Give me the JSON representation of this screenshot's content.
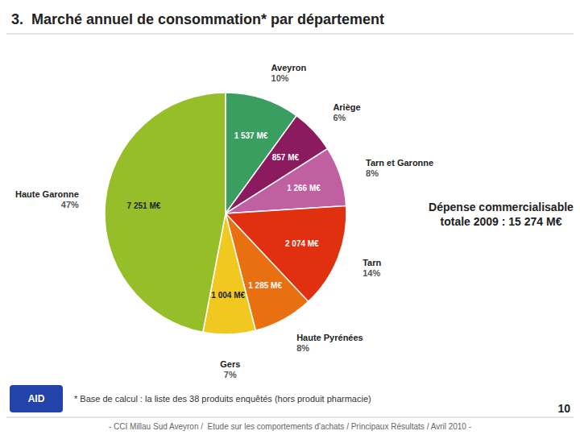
{
  "chart_data": {
    "type": "pie",
    "title": "3.  Marché annuel de consommation* par département",
    "categories": [
      "Aveyron",
      "Ariège",
      "Tarn et Garonne",
      "Tarn",
      "Haute Pyrénées",
      "Gers",
      "Haute Garonne"
    ],
    "values": [
      10,
      6,
      8,
      14,
      8,
      7,
      47
    ],
    "value_labels": [
      "10%",
      "6%",
      "8%",
      "14%",
      "8%",
      "7%",
      "47%"
    ],
    "amount_labels": [
      "1 537 M€",
      "857 M€",
      "1 266 M€",
      "2 074 M€",
      "1 285 M€",
      "1 004 M€",
      "7 251 M€"
    ],
    "colors": [
      "#3a9e60",
      "#8b1a5e",
      "#c060a0",
      "#e03010",
      "#e87010",
      "#f0c820",
      "#96be28"
    ],
    "annotations": [
      "Dépense commercialisable\ntotale 2009 : 15 274 M€",
      "* Base de calcul : la liste des 38 produits enquêtés (hors produit pharmacie)",
      "10",
      "- CCI Millau Sud Aveyron /  Etude sur les comportements d'achats / Principaux Résultats / Avril 2010 -",
      "AID"
    ]
  }
}
